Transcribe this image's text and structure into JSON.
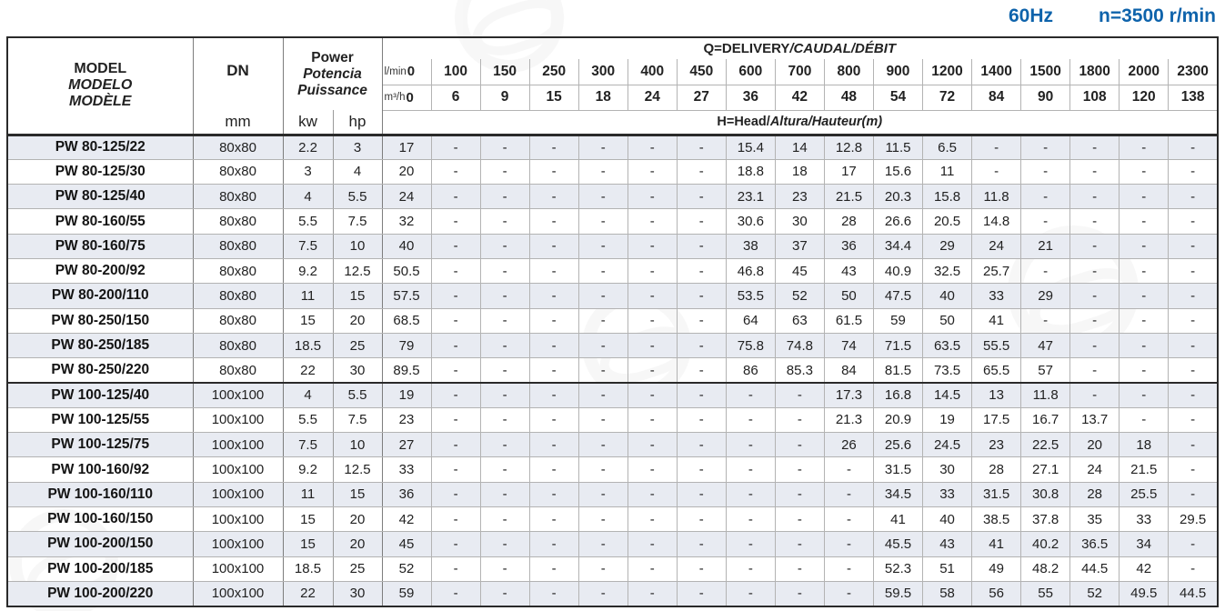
{
  "page": {
    "frequency": "60Hz",
    "speed": "n=3500 r/min",
    "accent_color": "#0e63ab",
    "alt_row_color": "#e8ebf2"
  },
  "table": {
    "header": {
      "model_line1": "MODEL",
      "model_line2": "MODELO",
      "model_line3": "MODÈLE",
      "dn_label": "DN",
      "dn_unit": "mm",
      "power_line1": "Power",
      "power_line2": "Potencia",
      "power_line3": "Puissance",
      "kw_label": "kw",
      "hp_label": "hp",
      "q_title_normal": "Q=DELIVERY",
      "q_title_italic": "/CAUDAL/DÉBIT",
      "flow_lmin_label": "l/min",
      "flow_m3h_label": "m³/h",
      "flow_lmin": [
        "0",
        "100",
        "150",
        "250",
        "300",
        "400",
        "450",
        "600",
        "700",
        "800",
        "900",
        "1200",
        "1400",
        "1500",
        "1800",
        "2000",
        "2300"
      ],
      "flow_m3h": [
        "0",
        "6",
        "9",
        "15",
        "18",
        "24",
        "27",
        "36",
        "42",
        "48",
        "54",
        "72",
        "84",
        "90",
        "108",
        "120",
        "138"
      ],
      "head_title_normal": "H=Head/",
      "head_title_italic": "Altura/Hauteur(m)"
    },
    "group_break_index": 9,
    "rows": [
      {
        "model": "PW 80-125/22",
        "dn": "80x80",
        "kw": "2.2",
        "hp": "3",
        "head": [
          "17",
          "-",
          "-",
          "-",
          "-",
          "-",
          "-",
          "15.4",
          "14",
          "12.8",
          "11.5",
          "6.5",
          "-",
          "-",
          "-",
          "-",
          "-"
        ]
      },
      {
        "model": "PW 80-125/30",
        "dn": "80x80",
        "kw": "3",
        "hp": "4",
        "head": [
          "20",
          "-",
          "-",
          "-",
          "-",
          "-",
          "-",
          "18.8",
          "18",
          "17",
          "15.6",
          "11",
          "-",
          "-",
          "-",
          "-",
          "-"
        ]
      },
      {
        "model": "PW 80-125/40",
        "dn": "80x80",
        "kw": "4",
        "hp": "5.5",
        "head": [
          "24",
          "-",
          "-",
          "-",
          "-",
          "-",
          "-",
          "23.1",
          "23",
          "21.5",
          "20.3",
          "15.8",
          "11.8",
          "-",
          "-",
          "-",
          "-"
        ]
      },
      {
        "model": "PW 80-160/55",
        "dn": "80x80",
        "kw": "5.5",
        "hp": "7.5",
        "head": [
          "32",
          "-",
          "-",
          "-",
          "-",
          "-",
          "-",
          "30.6",
          "30",
          "28",
          "26.6",
          "20.5",
          "14.8",
          "-",
          "-",
          "-",
          "-"
        ]
      },
      {
        "model": "PW 80-160/75",
        "dn": "80x80",
        "kw": "7.5",
        "hp": "10",
        "head": [
          "40",
          "-",
          "-",
          "-",
          "-",
          "-",
          "-",
          "38",
          "37",
          "36",
          "34.4",
          "29",
          "24",
          "21",
          "-",
          "-",
          "-"
        ]
      },
      {
        "model": "PW 80-200/92",
        "dn": "80x80",
        "kw": "9.2",
        "hp": "12.5",
        "head": [
          "50.5",
          "-",
          "-",
          "-",
          "-",
          "-",
          "-",
          "46.8",
          "45",
          "43",
          "40.9",
          "32.5",
          "25.7",
          "-",
          "-",
          "-",
          "-"
        ]
      },
      {
        "model": "PW 80-200/110",
        "dn": "80x80",
        "kw": "11",
        "hp": "15",
        "head": [
          "57.5",
          "-",
          "-",
          "-",
          "-",
          "-",
          "-",
          "53.5",
          "52",
          "50",
          "47.5",
          "40",
          "33",
          "29",
          "-",
          "-",
          "-"
        ]
      },
      {
        "model": "PW 80-250/150",
        "dn": "80x80",
        "kw": "15",
        "hp": "20",
        "head": [
          "68.5",
          "-",
          "-",
          "-",
          "-",
          "-",
          "-",
          "64",
          "63",
          "61.5",
          "59",
          "50",
          "41",
          "-",
          "-",
          "-",
          "-"
        ]
      },
      {
        "model": "PW 80-250/185",
        "dn": "80x80",
        "kw": "18.5",
        "hp": "25",
        "head": [
          "79",
          "-",
          "-",
          "-",
          "-",
          "-",
          "-",
          "75.8",
          "74.8",
          "74",
          "71.5",
          "63.5",
          "55.5",
          "47",
          "-",
          "-",
          "-"
        ]
      },
      {
        "model": "PW 80-250/220",
        "dn": "80x80",
        "kw": "22",
        "hp": "30",
        "head": [
          "89.5",
          "-",
          "-",
          "-",
          "-",
          "-",
          "-",
          "86",
          "85.3",
          "84",
          "81.5",
          "73.5",
          "65.5",
          "57",
          "-",
          "-",
          "-"
        ]
      },
      {
        "model": "PW 100-125/40",
        "dn": "100x100",
        "kw": "4",
        "hp": "5.5",
        "head": [
          "19",
          "-",
          "-",
          "-",
          "-",
          "-",
          "-",
          "-",
          "-",
          "17.3",
          "16.8",
          "14.5",
          "13",
          "11.8",
          "-",
          "-",
          "-"
        ]
      },
      {
        "model": "PW 100-125/55",
        "dn": "100x100",
        "kw": "5.5",
        "hp": "7.5",
        "head": [
          "23",
          "-",
          "-",
          "-",
          "-",
          "-",
          "-",
          "-",
          "-",
          "21.3",
          "20.9",
          "19",
          "17.5",
          "16.7",
          "13.7",
          "-",
          "-"
        ]
      },
      {
        "model": "PW 100-125/75",
        "dn": "100x100",
        "kw": "7.5",
        "hp": "10",
        "head": [
          "27",
          "-",
          "-",
          "-",
          "-",
          "-",
          "-",
          "-",
          "-",
          "26",
          "25.6",
          "24.5",
          "23",
          "22.5",
          "20",
          "18",
          "-"
        ]
      },
      {
        "model": "PW 100-160/92",
        "dn": "100x100",
        "kw": "9.2",
        "hp": "12.5",
        "head": [
          "33",
          "-",
          "-",
          "-",
          "-",
          "-",
          "-",
          "-",
          "-",
          "-",
          "31.5",
          "30",
          "28",
          "27.1",
          "24",
          "21.5",
          "-"
        ]
      },
      {
        "model": "PW 100-160/110",
        "dn": "100x100",
        "kw": "11",
        "hp": "15",
        "head": [
          "36",
          "-",
          "-",
          "-",
          "-",
          "-",
          "-",
          "-",
          "-",
          "-",
          "34.5",
          "33",
          "31.5",
          "30.8",
          "28",
          "25.5",
          "-"
        ]
      },
      {
        "model": "PW 100-160/150",
        "dn": "100x100",
        "kw": "15",
        "hp": "20",
        "head": [
          "42",
          "-",
          "-",
          "-",
          "-",
          "-",
          "-",
          "-",
          "-",
          "-",
          "41",
          "40",
          "38.5",
          "37.8",
          "35",
          "33",
          "29.5"
        ]
      },
      {
        "model": "PW 100-200/150",
        "dn": "100x100",
        "kw": "15",
        "hp": "20",
        "head": [
          "45",
          "-",
          "-",
          "-",
          "-",
          "-",
          "-",
          "-",
          "-",
          "-",
          "45.5",
          "43",
          "41",
          "40.2",
          "36.5",
          "34",
          "-"
        ]
      },
      {
        "model": "PW 100-200/185",
        "dn": "100x100",
        "kw": "18.5",
        "hp": "25",
        "head": [
          "52",
          "-",
          "-",
          "-",
          "-",
          "-",
          "-",
          "-",
          "-",
          "-",
          "52.3",
          "51",
          "49",
          "48.2",
          "44.5",
          "42",
          "-"
        ]
      },
      {
        "model": "PW 100-200/220",
        "dn": "100x100",
        "kw": "22",
        "hp": "30",
        "head": [
          "59",
          "-",
          "-",
          "-",
          "-",
          "-",
          "-",
          "-",
          "-",
          "-",
          "59.5",
          "58",
          "56",
          "55",
          "52",
          "49.5",
          "44.5"
        ]
      }
    ]
  }
}
